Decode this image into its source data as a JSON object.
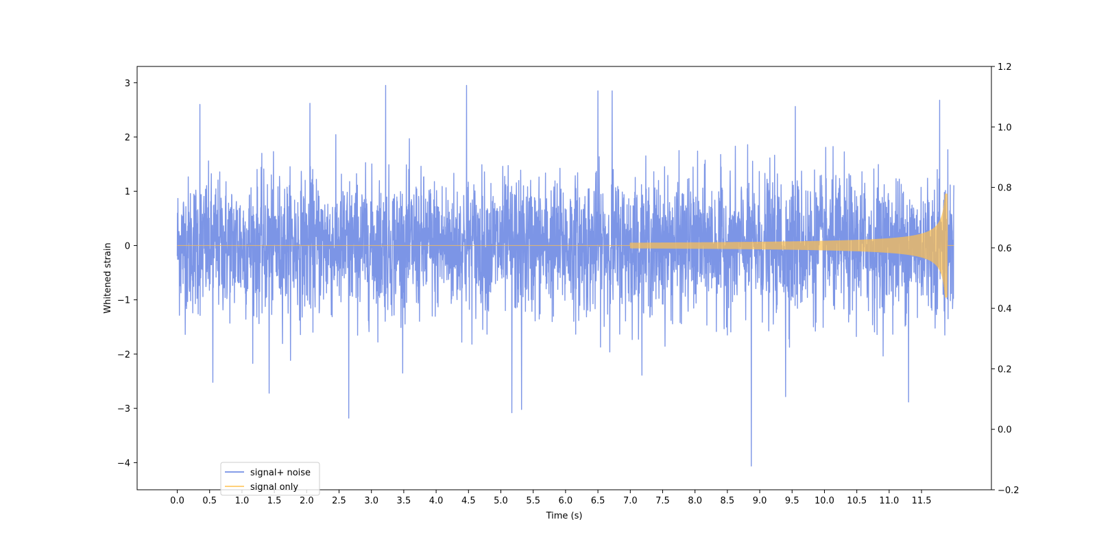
{
  "chart_data": {
    "type": "line",
    "title": "",
    "xlabel": "Time (s)",
    "ylabel": "Whitened strain",
    "y2label": "",
    "xlim": [
      -0.62,
      12.58
    ],
    "ylim": [
      -4.5,
      3.3
    ],
    "y2lim": [
      -0.2,
      1.2
    ],
    "x_ticks": [
      0.0,
      0.5,
      1.0,
      1.5,
      2.0,
      2.5,
      3.0,
      3.5,
      4.0,
      4.5,
      5.0,
      5.5,
      6.0,
      6.5,
      7.0,
      7.5,
      8.0,
      8.5,
      9.0,
      9.5,
      10.0,
      10.5,
      11.0,
      11.5
    ],
    "x_tick_labels": [
      "0.0",
      "0.5",
      "1.0",
      "1.5",
      "2.0",
      "2.5",
      "3.0",
      "3.5",
      "4.0",
      "4.5",
      "5.0",
      "5.5",
      "6.0",
      "6.5",
      "7.0",
      "7.5",
      "8.0",
      "8.5",
      "9.0",
      "9.5",
      "10.0",
      "10.5",
      "11.0",
      "11.5"
    ],
    "y_ticks": [
      -4,
      -3,
      -2,
      -1,
      0,
      1,
      2,
      3
    ],
    "y_tick_labels": [
      "−4",
      "−3",
      "−2",
      "−1",
      "0",
      "1",
      "2",
      "3"
    ],
    "y2_ticks": [
      -0.2,
      0.0,
      0.2,
      0.4,
      0.6,
      0.8,
      1.0,
      1.2
    ],
    "y2_tick_labels": [
      "−0.2",
      "0.0",
      "0.2",
      "0.4",
      "0.6",
      "0.8",
      "1.0",
      "1.2"
    ],
    "grid": false,
    "legend_position": "bottom-left",
    "series": [
      {
        "name": "signal+ noise",
        "color": "#5b7be0",
        "x_range": [
          0.0,
          12.0
        ],
        "approx_envelope_max": 2.0,
        "approx_envelope_min": -2.0,
        "noise_std": 0.8,
        "notable_peaks": [
          {
            "x": 0.35,
            "y": 2.6
          },
          {
            "x": 2.05,
            "y": 2.62
          },
          {
            "x": 3.22,
            "y": 2.95
          },
          {
            "x": 4.47,
            "y": 2.95
          },
          {
            "x": 6.5,
            "y": 2.85
          },
          {
            "x": 6.72,
            "y": 2.85
          },
          {
            "x": 9.55,
            "y": 2.6
          },
          {
            "x": 11.78,
            "y": 2.6
          }
        ],
        "notable_troughs": [
          {
            "x": 0.55,
            "y": -2.52
          },
          {
            "x": 1.42,
            "y": -2.72
          },
          {
            "x": 2.65,
            "y": -3.18
          },
          {
            "x": 5.17,
            "y": -3.08
          },
          {
            "x": 5.32,
            "y": -3.02
          },
          {
            "x": 8.87,
            "y": -4.1
          },
          {
            "x": 9.4,
            "y": -2.85
          },
          {
            "x": 11.3,
            "y": -2.72
          }
        ]
      },
      {
        "name": "signal only",
        "color": "#ffc04d",
        "x_range": [
          0.0,
          12.0
        ],
        "description_values": {
          "start_amplitude_x": 7.0,
          "amplitude_at_8": 0.06,
          "amplitude_at_10": 0.12,
          "amplitude_at_11.5": 0.28,
          "peak_amplitude": 0.95,
          "merger_time": 11.9
        }
      }
    ]
  }
}
